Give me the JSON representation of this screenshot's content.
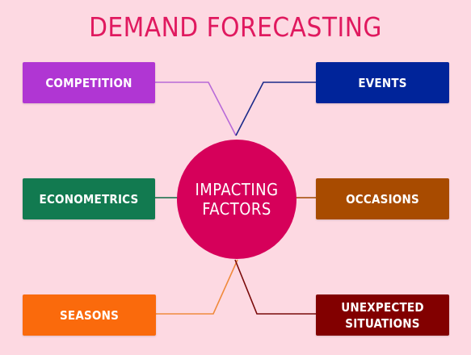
{
  "diagram": {
    "title": "DEMAND FORECASTING",
    "hub": {
      "label": "IMPACTING\nFACTORS",
      "color": "#d6005a"
    },
    "factors": [
      {
        "id": "competition",
        "label": "COMPETITION",
        "color": "#b036d3",
        "line_color": "#b86ad8"
      },
      {
        "id": "events",
        "label": "EVENTS",
        "color": "#00249a",
        "line_color": "#1a2a8a"
      },
      {
        "id": "econometrics",
        "label": "ECONOMETRICS",
        "color": "#127a50",
        "line_color": "#0f6b45"
      },
      {
        "id": "occasions",
        "label": "OCCASIONS",
        "color": "#a84b00",
        "line_color": "#a14800"
      },
      {
        "id": "seasons",
        "label": "SEASONS",
        "color": "#fa6a0c",
        "line_color": "#f08a3c"
      },
      {
        "id": "unexpected",
        "label": "UNEXPECTED\nSITUATIONS",
        "color": "#820000",
        "line_color": "#7a0a0a"
      }
    ],
    "colors": {
      "background": "#fdd9e2",
      "title": "#e0195f"
    }
  }
}
